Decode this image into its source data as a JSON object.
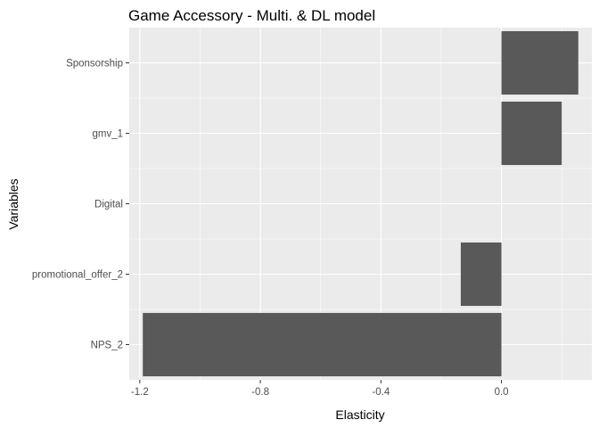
{
  "chart_data": {
    "type": "bar",
    "orientation": "horizontal",
    "title": "Game Accessory - Multi. & DL model",
    "xlabel": "Elasticity",
    "ylabel": "Variables",
    "categories": [
      "Sponsorship",
      "gmv_1",
      "Digital",
      "promotional_offer_2",
      "NPS_2"
    ],
    "values": [
      0.255,
      0.2,
      0.0,
      -0.135,
      -1.19
    ],
    "xlim": [
      -1.235,
      0.3
    ],
    "xticks": [
      -1.2,
      -0.8,
      -0.4,
      0.0
    ],
    "xtick_labels": [
      "-1.2",
      "-0.8",
      "-0.4",
      "0.0"
    ],
    "grid": true,
    "legend": "none",
    "colors": {
      "bar": "#595959",
      "panel": "#ebebeb",
      "grid_major": "#ffffff",
      "tick": "#333333"
    }
  }
}
